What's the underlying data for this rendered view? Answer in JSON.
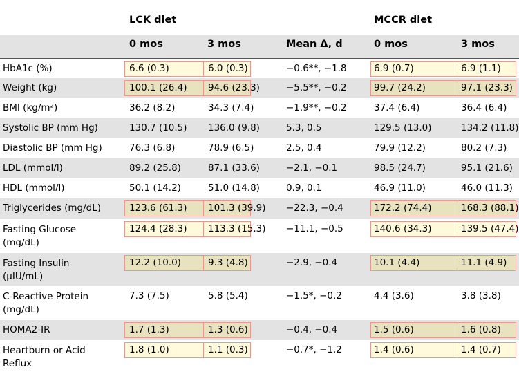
{
  "groups": [
    {
      "label": "LCK diet"
    },
    {
      "label": "MCCR diet"
    }
  ],
  "columns": [
    "0 mos",
    "3 mos",
    "Mean Δ, d",
    "0 mos",
    "3 mos"
  ],
  "rows": [
    {
      "label": "HbA1c (%)",
      "cells": [
        "6.6 (0.3)",
        "6.0 (0.3)",
        "−0.6**, −1.8",
        "6.9 (0.7)",
        "6.9 (1.1)"
      ]
    },
    {
      "label": "Weight (kg)",
      "cells": [
        "100.1 (26.4)",
        "94.6 (23.3)",
        "−5.5**, −0.2",
        "99.7 (24.2)",
        "97.1 (23.3)"
      ]
    },
    {
      "label": "BMI (kg/m²)",
      "cells": [
        "36.2 (8.2)",
        "34.3 (7.4)",
        "−1.9**, −0.2",
        "37.4 (6.4)",
        "36.4 (6.4)"
      ]
    },
    {
      "label": "Systolic BP (mm Hg)",
      "cells": [
        "130.7 (10.5)",
        "136.0 (9.8)",
        "5.3, 0.5",
        "129.5 (13.0)",
        "134.2 (11.8)"
      ]
    },
    {
      "label": "Diastolic BP (mm Hg)",
      "cells": [
        "76.3 (6.8)",
        "78.9 (6.5)",
        "2.5, 0.4",
        "79.9 (12.2)",
        "80.2 (7.3)"
      ]
    },
    {
      "label": "LDL (mmol/l)",
      "cells": [
        "89.2 (25.8)",
        "87.1 (33.6)",
        "−2.1, −0.1",
        "98.5 (24.7)",
        "95.1 (21.6)"
      ]
    },
    {
      "label": "HDL (mmol/l)",
      "cells": [
        "50.1 (14.2)",
        "51.0 (14.8)",
        "0.9, 0.1",
        "46.9 (11.0)",
        "46.0 (11.3)"
      ]
    },
    {
      "label": "Triglycerides (mg/dL)",
      "cells": [
        "123.6 (61.3)",
        "101.3 (39.9)",
        "−22.3, −0.4",
        "172.2 (74.4)",
        "168.3 (88.1)"
      ]
    },
    {
      "label": "Fasting Glucose (mg/dL)",
      "cells": [
        "124.4 (28.3)",
        "113.3 (15.3)",
        "−11.1, −0.5",
        "140.6 (34.3)",
        "139.5 (47.4)"
      ]
    },
    {
      "label": "Fasting Insulin (μIU/mL)",
      "cells": [
        "12.2 (10.0)",
        "9.3 (4.8)",
        "−2.9, −0.4",
        "10.1 (4.4)",
        "11.1 (4.9)"
      ]
    },
    {
      "label": "C-Reactive Protein (mg/dL)",
      "cells": [
        "7.3 (7.5)",
        "5.8 (5.4)",
        "−1.5*, −0.2",
        "4.4 (3.6)",
        "3.8 (3.8)"
      ]
    },
    {
      "label": "HOMA2-IR",
      "cells": [
        "1.7 (1.3)",
        "1.3 (0.6)",
        "−0.4, −0.4",
        "1.5 (0.6)",
        "1.6 (0.8)"
      ]
    },
    {
      "label": "Heartburn or Acid Reflux",
      "cells": [
        "1.8 (1.0)",
        "1.1 (0.3)",
        "−0.7*, −1.2",
        "1.4 (0.6)",
        "1.4 (0.7)"
      ]
    }
  ],
  "highlight_color": "#fff6be",
  "highlight_border": "#e59a8f",
  "stripe_color": "#e3e3e3"
}
